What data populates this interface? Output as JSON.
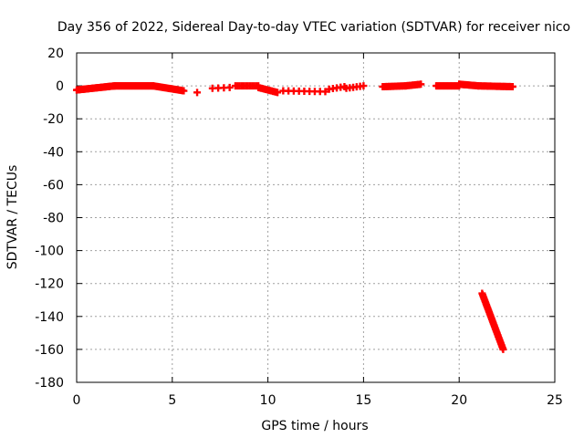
{
  "chart_data": {
    "type": "scatter",
    "title": "Day 356 of 2022, Sidereal Day-to-day VTEC variation (SDTVAR) for receiver nico",
    "xlabel": "GPS time / hours",
    "ylabel": "SDTVAR / TECUs",
    "xlim": [
      0,
      25
    ],
    "ylim": [
      -180,
      20
    ],
    "xticks": [
      0,
      5,
      10,
      15,
      20,
      25
    ],
    "yticks": [
      20,
      0,
      -20,
      -40,
      -60,
      -80,
      -100,
      -120,
      -140,
      -160,
      -180
    ],
    "grid": true,
    "marker": "plus",
    "color": "#ff0000",
    "series": [
      {
        "name": "SDTVAR",
        "segments": [
          {
            "x0": 0.0,
            "x1": 2.0,
            "y0": -2.5,
            "y1": 0.0,
            "count": 50
          },
          {
            "x0": 2.0,
            "x1": 4.0,
            "y0": 0.0,
            "y1": 0.0,
            "count": 50
          },
          {
            "x0": 4.0,
            "x1": 5.6,
            "y0": 0.0,
            "y1": -3.0,
            "count": 28
          },
          {
            "x0": 6.3,
            "x1": 6.3,
            "y0": -4.0,
            "y1": -4.0,
            "count": 1
          },
          {
            "x0": 7.1,
            "x1": 8.0,
            "y0": -1.5,
            "y1": -1.0,
            "count": 4
          },
          {
            "x0": 8.3,
            "x1": 9.5,
            "y0": 0.0,
            "y1": 0.0,
            "count": 12
          },
          {
            "x0": 9.5,
            "x1": 10.5,
            "y0": -1.0,
            "y1": -4.0,
            "count": 14
          },
          {
            "x0": 10.8,
            "x1": 13.0,
            "y0": -3.0,
            "y1": -3.5,
            "count": 9
          },
          {
            "x0": 13.2,
            "x1": 14.0,
            "y0": -2.0,
            "y1": -0.5,
            "count": 5
          },
          {
            "x0": 14.1,
            "x1": 15.0,
            "y0": -1.5,
            "y1": 0.0,
            "count": 6
          },
          {
            "x0": 16.0,
            "x1": 17.2,
            "y0": -0.5,
            "y1": 0.0,
            "count": 16
          },
          {
            "x0": 17.2,
            "x1": 18.0,
            "y0": 0.0,
            "y1": 1.0,
            "count": 12
          },
          {
            "x0": 18.8,
            "x1": 20.0,
            "y0": 0.0,
            "y1": 0.0,
            "count": 20
          },
          {
            "x0": 20.0,
            "x1": 21.0,
            "y0": 1.0,
            "y1": 0.0,
            "count": 18
          },
          {
            "x0": 21.0,
            "x1": 22.8,
            "y0": 0.0,
            "y1": -0.5,
            "count": 28
          },
          {
            "x0": 21.2,
            "x1": 22.3,
            "y0": -126.0,
            "y1": -160.0,
            "count": 40
          }
        ]
      }
    ]
  }
}
